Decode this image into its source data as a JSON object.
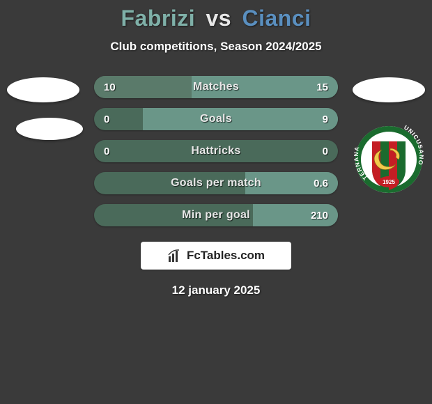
{
  "title": {
    "player1": "Fabrizi",
    "vs": "vs",
    "player2": "Cianci",
    "player1_color": "#7fb0a8",
    "player2_color": "#5a8fbf"
  },
  "subtitle": "Club competitions, Season 2024/2025",
  "colors": {
    "bar_track": "#4a6a5a",
    "bar_left": "#5a7a6a",
    "bar_right": "#6a9688",
    "background": "#3a3a3a"
  },
  "bars": [
    {
      "label": "Matches",
      "left_val": "10",
      "right_val": "15",
      "left_pct": 40,
      "right_pct": 60
    },
    {
      "label": "Goals",
      "left_val": "0",
      "right_val": "9",
      "left_pct": 0,
      "right_pct": 80
    },
    {
      "label": "Hattricks",
      "left_val": "0",
      "right_val": "0",
      "left_pct": 0,
      "right_pct": 0
    },
    {
      "label": "Goals per match",
      "left_val": "",
      "right_val": "0.6",
      "left_pct": 0,
      "right_pct": 38
    },
    {
      "label": "Min per goal",
      "left_val": "",
      "right_val": "210",
      "left_pct": 0,
      "right_pct": 35
    }
  ],
  "badge": {
    "outer_text": "UNICUSANO TERNANA",
    "year": "1925",
    "ring_colors": [
      "#ffffff",
      "#1a6b2e"
    ],
    "shield_stripes": [
      "#c41e24",
      "#1a6b2e",
      "#c41e24",
      "#1a6b2e"
    ],
    "dragon_color": "#f2c94c"
  },
  "logo": {
    "text": "FcTables.com"
  },
  "date": "12 january 2025"
}
